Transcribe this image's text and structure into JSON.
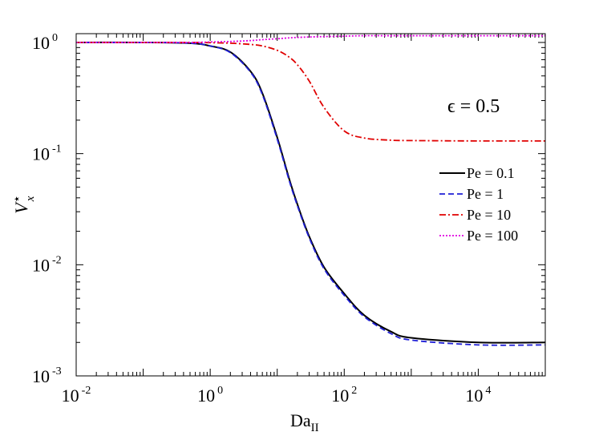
{
  "chart_data": {
    "type": "line",
    "title": "",
    "xlabel": "Da",
    "xlabel_sub": "II",
    "ylabel": "V",
    "ylabel_sub": "x",
    "ylabel_sup": "⋆",
    "xscale": "log",
    "yscale": "log",
    "xlim": [
      0.01,
      100000
    ],
    "ylim": [
      0.001,
      1.2
    ],
    "x_ticks": [
      {
        "base": "10",
        "exp": "-2"
      },
      {
        "base": "10",
        "exp": "0"
      },
      {
        "base": "10",
        "exp": "2"
      },
      {
        "base": "10",
        "exp": "4"
      }
    ],
    "y_ticks": [
      {
        "base": "10",
        "exp": "-3"
      },
      {
        "base": "10",
        "exp": "-2"
      },
      {
        "base": "10",
        "exp": "-1"
      },
      {
        "base": "10",
        "exp": "0"
      }
    ],
    "x": [
      0.01,
      0.1,
      0.5,
      1,
      2,
      4,
      6,
      10,
      15,
      20,
      30,
      50,
      100,
      200,
      500,
      1000,
      10000,
      100000
    ],
    "series": [
      {
        "name": "Pe = 0.1",
        "color": "#000000",
        "dash": "solid",
        "values": [
          1.0,
          1.0,
          0.985,
          0.93,
          0.82,
          0.55,
          0.35,
          0.14,
          0.06,
          0.035,
          0.018,
          0.0095,
          0.0055,
          0.0035,
          0.0025,
          0.0022,
          0.002,
          0.002
        ]
      },
      {
        "name": "Pe = 1",
        "color": "#1f1fd6",
        "dash": "dashed",
        "values": [
          1.0,
          1.0,
          0.985,
          0.93,
          0.81,
          0.54,
          0.34,
          0.135,
          0.058,
          0.034,
          0.0175,
          0.0092,
          0.0053,
          0.0034,
          0.0024,
          0.0021,
          0.0019,
          0.0019
        ]
      },
      {
        "name": "Pe = 10",
        "color": "#e00000",
        "dash": "dash-dot",
        "values": [
          1.0,
          1.0,
          1.0,
          0.995,
          0.985,
          0.96,
          0.93,
          0.85,
          0.74,
          0.63,
          0.45,
          0.26,
          0.16,
          0.138,
          0.132,
          0.131,
          0.13,
          0.13
        ]
      },
      {
        "name": "Pe = 100",
        "color": "#e000e0",
        "dash": "dotted",
        "values": [
          1.0,
          1.0,
          1.0,
          1.01,
          1.02,
          1.04,
          1.06,
          1.08,
          1.1,
          1.11,
          1.12,
          1.13,
          1.14,
          1.15,
          1.15,
          1.15,
          1.15,
          1.15
        ]
      }
    ],
    "legend_position": "center-right",
    "annotation": "ϵ = 0.5"
  }
}
